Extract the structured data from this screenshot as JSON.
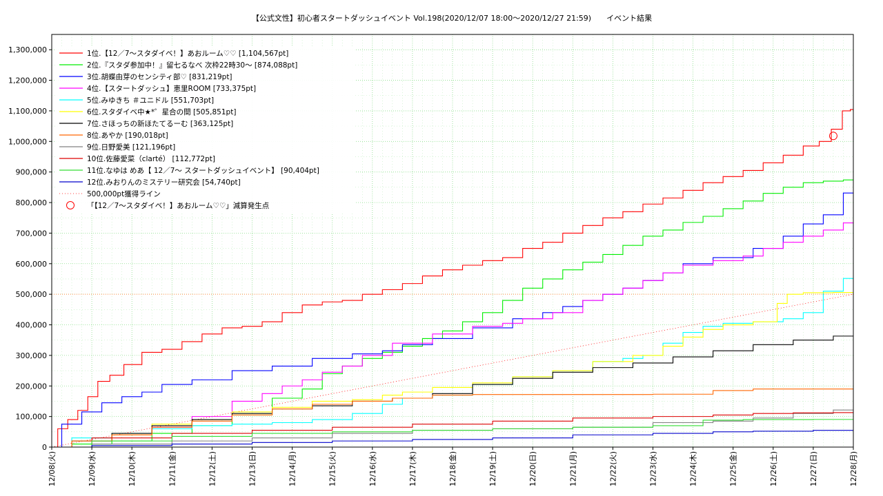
{
  "chart_data": {
    "type": "line",
    "title": "【公式文性】初心者スタートダッシュイベント Vol.198(2020/12/07 18:00〜2020/12/27 21:59)　　イベント結果",
    "xlabel": "",
    "ylabel": "",
    "x_tick_labels": [
      "12/08(火)",
      "12/09(水)",
      "12/10(木)",
      "12/11(金)",
      "12/12(土)",
      "12/13(日)",
      "12/14(月)",
      "12/15(火)",
      "12/16(水)",
      "12/17(木)",
      "12/18(金)",
      "12/19(土)",
      "12/20(日)",
      "12/21(月)",
      "12/22(火)",
      "12/23(水)",
      "12/24(木)",
      "12/25(金)",
      "12/26(土)",
      "12/27(日)",
      "12/28(月)"
    ],
    "y_tick_labels": [
      "0",
      "100,000",
      "200,000",
      "300,000",
      "400,000",
      "500,000",
      "600,000",
      "700,000",
      "800,000",
      "900,000",
      "1,000,000",
      "1,100,000",
      "1,200,000",
      "1,300,000"
    ],
    "xlim": [
      0,
      20
    ],
    "ylim": [
      0,
      1350000
    ],
    "grid": true,
    "legend_position": "top-left",
    "x_unit": "days since 12/08 00:00 (12/08 at 0 … 12/28 at 20)",
    "series": [
      {
        "name": "1位.【12／7〜スタダイベ！】あおルーム♡♡ [1,104,567pt]",
        "color": "#ff0000",
        "points": [
          [
            0,
            0
          ],
          [
            0.3,
            60000
          ],
          [
            0.5,
            90000
          ],
          [
            0.8,
            120000
          ],
          [
            1.0,
            165000
          ],
          [
            1.3,
            215000
          ],
          [
            1.6,
            235000
          ],
          [
            2.0,
            270000
          ],
          [
            2.5,
            310000
          ],
          [
            3.0,
            320000
          ],
          [
            3.5,
            345000
          ],
          [
            4.0,
            370000
          ],
          [
            4.5,
            390000
          ],
          [
            5.0,
            395000
          ],
          [
            5.5,
            410000
          ],
          [
            6.0,
            440000
          ],
          [
            6.5,
            465000
          ],
          [
            7.0,
            475000
          ],
          [
            7.5,
            480000
          ],
          [
            8.0,
            500000
          ],
          [
            8.5,
            515000
          ],
          [
            9.0,
            535000
          ],
          [
            9.5,
            560000
          ],
          [
            10.0,
            580000
          ],
          [
            10.5,
            595000
          ],
          [
            11.0,
            610000
          ],
          [
            11.5,
            620000
          ],
          [
            12.0,
            650000
          ],
          [
            12.5,
            670000
          ],
          [
            13.0,
            700000
          ],
          [
            13.5,
            725000
          ],
          [
            14.0,
            750000
          ],
          [
            14.5,
            770000
          ],
          [
            15.0,
            795000
          ],
          [
            15.5,
            815000
          ],
          [
            16.0,
            840000
          ],
          [
            16.5,
            865000
          ],
          [
            17.0,
            885000
          ],
          [
            17.5,
            905000
          ],
          [
            18.0,
            930000
          ],
          [
            18.5,
            955000
          ],
          [
            19.0,
            985000
          ],
          [
            19.3,
            1000000
          ],
          [
            19.6,
            1040000
          ],
          [
            19.85,
            1100000
          ],
          [
            20.0,
            1104567
          ]
        ]
      },
      {
        "name": "2位.『スタダ参加中！』留七るなべ 次枠22時30〜 [874,088pt]",
        "color": "#00ee00",
        "points": [
          [
            0,
            0
          ],
          [
            1,
            10000
          ],
          [
            2,
            20000
          ],
          [
            3,
            45000
          ],
          [
            4,
            70000
          ],
          [
            5,
            105000
          ],
          [
            6,
            160000
          ],
          [
            6.5,
            190000
          ],
          [
            7,
            240000
          ],
          [
            7.5,
            265000
          ],
          [
            8,
            290000
          ],
          [
            8.5,
            310000
          ],
          [
            9,
            330000
          ],
          [
            9.5,
            355000
          ],
          [
            10,
            380000
          ],
          [
            10.5,
            410000
          ],
          [
            11,
            440000
          ],
          [
            11.5,
            480000
          ],
          [
            12,
            520000
          ],
          [
            12.5,
            550000
          ],
          [
            13,
            580000
          ],
          [
            13.5,
            605000
          ],
          [
            14,
            630000
          ],
          [
            14.5,
            660000
          ],
          [
            15,
            690000
          ],
          [
            15.5,
            710000
          ],
          [
            16,
            735000
          ],
          [
            16.5,
            755000
          ],
          [
            17,
            780000
          ],
          [
            17.5,
            805000
          ],
          [
            18,
            830000
          ],
          [
            18.5,
            850000
          ],
          [
            19,
            865000
          ],
          [
            19.5,
            870000
          ],
          [
            20,
            874088
          ]
        ]
      },
      {
        "name": "3位.胡蝶由芽のセンシティ部♡ [831,219pt]",
        "color": "#0000ff",
        "points": [
          [
            0,
            0
          ],
          [
            0.5,
            75000
          ],
          [
            1,
            115000
          ],
          [
            1.5,
            145000
          ],
          [
            2,
            165000
          ],
          [
            2.5,
            180000
          ],
          [
            3,
            205000
          ],
          [
            4,
            220000
          ],
          [
            5,
            250000
          ],
          [
            6,
            265000
          ],
          [
            7,
            290000
          ],
          [
            8,
            305000
          ],
          [
            8.5,
            315000
          ],
          [
            9,
            335000
          ],
          [
            10,
            355000
          ],
          [
            11,
            390000
          ],
          [
            12,
            420000
          ],
          [
            12.5,
            440000
          ],
          [
            13,
            460000
          ],
          [
            13.5,
            480000
          ],
          [
            14,
            500000
          ],
          [
            14.5,
            520000
          ],
          [
            15,
            545000
          ],
          [
            15.5,
            570000
          ],
          [
            16,
            600000
          ],
          [
            17,
            620000
          ],
          [
            18,
            650000
          ],
          [
            18.5,
            690000
          ],
          [
            19,
            730000
          ],
          [
            19.5,
            760000
          ],
          [
            20,
            831219
          ]
        ]
      },
      {
        "name": "4位.【スタートダッシュ】恵里ROOM [733,375pt]",
        "color": "#ff00ff",
        "points": [
          [
            0,
            0
          ],
          [
            1,
            20000
          ],
          [
            2,
            40000
          ],
          [
            3,
            65000
          ],
          [
            4,
            100000
          ],
          [
            5,
            150000
          ],
          [
            5.5,
            175000
          ],
          [
            6,
            200000
          ],
          [
            6.5,
            220000
          ],
          [
            7,
            245000
          ],
          [
            7.5,
            265000
          ],
          [
            8,
            300000
          ],
          [
            9,
            340000
          ],
          [
            10,
            370000
          ],
          [
            11,
            395000
          ],
          [
            11.5,
            405000
          ],
          [
            12,
            420000
          ],
          [
            13,
            440000
          ],
          [
            13.5,
            480000
          ],
          [
            14,
            500000
          ],
          [
            14.5,
            520000
          ],
          [
            15,
            545000
          ],
          [
            15.5,
            570000
          ],
          [
            16,
            595000
          ],
          [
            17,
            610000
          ],
          [
            17.5,
            625000
          ],
          [
            18,
            650000
          ],
          [
            18.5,
            670000
          ],
          [
            19,
            690000
          ],
          [
            19.5,
            710000
          ],
          [
            20,
            733375
          ]
        ]
      },
      {
        "name": "5位.みゆきち ＃ユニドル [551,703pt]",
        "color": "#00ffff",
        "points": [
          [
            0,
            0
          ],
          [
            1,
            30000
          ],
          [
            2,
            45000
          ],
          [
            3,
            60000
          ],
          [
            4,
            70000
          ],
          [
            5,
            75000
          ],
          [
            6,
            80000
          ],
          [
            7,
            90000
          ],
          [
            8,
            110000
          ],
          [
            8.5,
            140000
          ],
          [
            9,
            160000
          ],
          [
            10,
            170000
          ],
          [
            11,
            205000
          ],
          [
            12,
            230000
          ],
          [
            13,
            250000
          ],
          [
            14,
            280000
          ],
          [
            14.5,
            290000
          ],
          [
            15,
            300000
          ],
          [
            15.5,
            340000
          ],
          [
            16,
            375000
          ],
          [
            16.5,
            395000
          ],
          [
            17,
            405000
          ],
          [
            18,
            410000
          ],
          [
            18.5,
            420000
          ],
          [
            19,
            440000
          ],
          [
            19.5,
            510000
          ],
          [
            20,
            551703
          ]
        ]
      },
      {
        "name": "6位.スタダイベ中★*゜星合の間 [505,851pt]",
        "color": "#ffff00",
        "points": [
          [
            0,
            0
          ],
          [
            1,
            20000
          ],
          [
            2,
            40000
          ],
          [
            3,
            75000
          ],
          [
            4,
            90000
          ],
          [
            5,
            115000
          ],
          [
            6,
            130000
          ],
          [
            7,
            150000
          ],
          [
            8,
            155000
          ],
          [
            8.5,
            170000
          ],
          [
            9,
            180000
          ],
          [
            10,
            195000
          ],
          [
            11,
            210000
          ],
          [
            12,
            230000
          ],
          [
            13,
            250000
          ],
          [
            14,
            280000
          ],
          [
            15,
            300000
          ],
          [
            15.5,
            330000
          ],
          [
            16,
            360000
          ],
          [
            16.5,
            385000
          ],
          [
            17,
            400000
          ],
          [
            18,
            410000
          ],
          [
            18.2,
            470000
          ],
          [
            18.5,
            500000
          ],
          [
            19,
            505000
          ],
          [
            20,
            505851
          ]
        ]
      },
      {
        "name": "7位.さほっちの新ほたてるーむ [363,125pt]",
        "color": "#000000",
        "points": [
          [
            0,
            0
          ],
          [
            1,
            20000
          ],
          [
            2,
            45000
          ],
          [
            3,
            70000
          ],
          [
            4,
            90000
          ],
          [
            5,
            110000
          ],
          [
            6,
            125000
          ],
          [
            7,
            135000
          ],
          [
            8,
            150000
          ],
          [
            9,
            160000
          ],
          [
            10,
            175000
          ],
          [
            11,
            205000
          ],
          [
            12,
            225000
          ],
          [
            13,
            245000
          ],
          [
            14,
            260000
          ],
          [
            15,
            275000
          ],
          [
            16,
            295000
          ],
          [
            17,
            315000
          ],
          [
            18,
            335000
          ],
          [
            19,
            350000
          ],
          [
            20,
            363125
          ]
        ]
      },
      {
        "name": "8位.あやか [190,018pt]",
        "color": "#ff6600",
        "points": [
          [
            0,
            0
          ],
          [
            1,
            20000
          ],
          [
            2,
            40000
          ],
          [
            3,
            65000
          ],
          [
            4,
            85000
          ],
          [
            5,
            105000
          ],
          [
            6,
            125000
          ],
          [
            7,
            140000
          ],
          [
            8,
            150000
          ],
          [
            9,
            160000
          ],
          [
            10,
            170000
          ],
          [
            11,
            172000
          ],
          [
            12,
            172000
          ],
          [
            14,
            172000
          ],
          [
            16,
            173000
          ],
          [
            17,
            185000
          ],
          [
            18,
            190000
          ],
          [
            20,
            190018
          ]
        ]
      },
      {
        "name": "9位.日野愛美 [121,196pt]",
        "color": "#808080",
        "points": [
          [
            0,
            0
          ],
          [
            2,
            10000
          ],
          [
            4,
            20000
          ],
          [
            6,
            30000
          ],
          [
            8,
            45000
          ],
          [
            10,
            55000
          ],
          [
            12,
            60000
          ],
          [
            14,
            65000
          ],
          [
            16,
            80000
          ],
          [
            17,
            85000
          ],
          [
            18,
            95000
          ],
          [
            19,
            110000
          ],
          [
            20,
            121196
          ]
        ]
      },
      {
        "name": "10位.佐藤愛菜（clarté） [112,772pt]",
        "color": "#dd0000",
        "points": [
          [
            0,
            0
          ],
          [
            2,
            30000
          ],
          [
            4,
            45000
          ],
          [
            6,
            55000
          ],
          [
            8,
            65000
          ],
          [
            10,
            75000
          ],
          [
            12,
            85000
          ],
          [
            14,
            95000
          ],
          [
            16,
            100000
          ],
          [
            17,
            105000
          ],
          [
            18,
            110000
          ],
          [
            19,
            112000
          ],
          [
            20,
            112772
          ]
        ]
      },
      {
        "name": "11位.なゆは めあ【 12／7〜 スタートダッシュイベント】 [90,404pt]",
        "color": "#33dd33",
        "points": [
          [
            0,
            0
          ],
          [
            2,
            20000
          ],
          [
            4,
            35000
          ],
          [
            6,
            45000
          ],
          [
            8,
            50000
          ],
          [
            10,
            55000
          ],
          [
            12,
            60000
          ],
          [
            14,
            65000
          ],
          [
            16,
            70000
          ],
          [
            16.5,
            88000
          ],
          [
            18,
            90000
          ],
          [
            20,
            90404
          ]
        ]
      },
      {
        "name": "12位.みおりんのミステリー研究会 [54,740pt]",
        "color": "#0000cc",
        "points": [
          [
            0,
            0
          ],
          [
            2,
            5000
          ],
          [
            4,
            10000
          ],
          [
            6,
            15000
          ],
          [
            8,
            20000
          ],
          [
            10,
            25000
          ],
          [
            12,
            30000
          ],
          [
            14,
            40000
          ],
          [
            16,
            45000
          ],
          [
            17,
            50000
          ],
          [
            18,
            52000
          ],
          [
            20,
            54740
          ]
        ]
      }
    ],
    "threshold": {
      "name": "500,000pt獲得ライン",
      "color": "#ff0000",
      "points": [
        [
          0,
          0
        ],
        [
          20,
          500000
        ]
      ]
    },
    "marker": {
      "name": "「【12／7〜スタダイベ！】あおルーム♡♡」減算発生点",
      "color": "#ff0000",
      "x": 19.5,
      "y": 1018000
    }
  }
}
